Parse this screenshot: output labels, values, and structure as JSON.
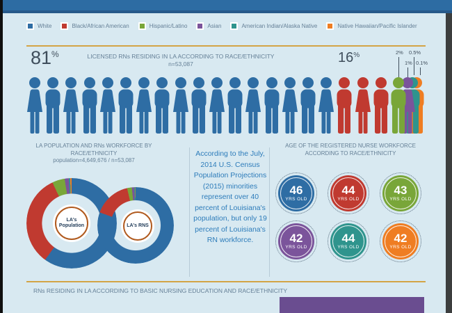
{
  "palette": {
    "white": "#2e6da4",
    "black": "#c03a30",
    "hispanic": "#79a639",
    "asian": "#7b549b",
    "amindian": "#2f948d",
    "nathaw": "#ef7d22",
    "gold": "#d3a445",
    "rust_ring": "#b05a1e",
    "callout_blue": "#2d7cba",
    "purple_block": "#6a4d90"
  },
  "legend": {
    "items": [
      {
        "label": "White",
        "color": "#2e6da4"
      },
      {
        "label": "Black/African American",
        "color": "#c03a30"
      },
      {
        "label": "Hispanic/Latino",
        "color": "#79a639"
      },
      {
        "label": "Asian",
        "color": "#7b549b"
      },
      {
        "label": "American Indian/Alaska Native",
        "color": "#2f948d"
      },
      {
        "label": "Native Hawaiian/Pacific Islander",
        "color": "#ef7d22"
      }
    ]
  },
  "header": {
    "stat_white": "81",
    "stat_black": "16",
    "pct": "%",
    "title": "LICENSED RNs RESIDING IN LA ACCORDING TO RACE/ETHNICITY",
    "subtitle": "n=53,087",
    "small_stats": [
      {
        "label": "2%"
      },
      {
        "label": "0.5%"
      },
      {
        "label": "1%"
      },
      {
        "label": "0.1%"
      }
    ]
  },
  "pictograph": {
    "groups": [
      {
        "race": "White",
        "color": "#2e6da4",
        "count": 17
      },
      {
        "race": "Black/African American",
        "color": "#c03a30",
        "count": 3
      },
      {
        "race": "Hispanic/Latino",
        "color": "#79a639",
        "count": 1
      },
      {
        "race": "Asian",
        "color": "#7b549b",
        "count": 1
      },
      {
        "race": "American Indian/Alaska Native",
        "color": "#2f948d",
        "count": 1
      },
      {
        "race": "Native Hawaiian/Pacific Islander",
        "color": "#ef7d22",
        "count": 1
      }
    ]
  },
  "venn": {
    "title": "LA POPULATION AND RNs WORKFORCE BY RACE/ETHNICITY",
    "subtitle": "population=4,649,676  /  n=53,087",
    "left_label_line1": "LA's",
    "left_label_line2": "Population",
    "right_label": "LA's RNS"
  },
  "callout": {
    "text": "According to the July, 2014 U.S. Census Population Projections (2015) minorities represent over 40 percent of Louisiana's population, but only 19 percent of Louisiana's RN workforce."
  },
  "ages": {
    "title_line1": "AGE OF THE REGISTERED NURSE WORKFORCE",
    "title_line2": "ACCORDING TO RACE/ETHNICITY",
    "circles": [
      {
        "age": "46",
        "unit": "YRS OLD",
        "color": "#2e6da4"
      },
      {
        "age": "44",
        "unit": "YRS OLD",
        "color": "#c03a30"
      },
      {
        "age": "43",
        "unit": "YRS OLD",
        "color": "#79a639"
      },
      {
        "age": "42",
        "unit": "YRS OLD",
        "color": "#7b549b"
      },
      {
        "age": "44",
        "unit": "YRS OLD",
        "color": "#2f948d"
      },
      {
        "age": "42",
        "unit": "YRS OLD",
        "color": "#ef7d22"
      }
    ]
  },
  "bottom": {
    "title": "RNs RESIDING IN LA ACCORDING TO BASIC NURSING EDUCATION AND RACE/ETHNICITY"
  },
  "chart_data": [
    {
      "type": "pictograph",
      "title": "LICENSED RNs RESIDING IN LA ACCORDING TO RACE/ETHNICITY",
      "n": 53087,
      "categories": [
        "White",
        "Black/African American",
        "Hispanic/Latino",
        "Asian",
        "American Indian/Alaska Native",
        "Native Hawaiian/Pacific Islander"
      ],
      "values": [
        81,
        16,
        2,
        1,
        0.5,
        0.1
      ],
      "unit": "%"
    },
    {
      "type": "pie",
      "title": "LA POPULATION AND RNs WORKFORCE BY RACE/ETHNICITY",
      "population": 4649676,
      "n": 53087,
      "categories": [
        "White",
        "Black/African American",
        "Hispanic/Latino",
        "Asian",
        "American Indian/Alaska Native",
        "Native Hawaiian/Pacific Islander"
      ],
      "series": [
        {
          "name": "LA's Population",
          "values": [
            60,
            33,
            4.5,
            1.5,
            0.5,
            0.5
          ]
        },
        {
          "name": "LA's RNS",
          "values": [
            81,
            16,
            2,
            1,
            0.5,
            0.1
          ]
        }
      ],
      "legend_position": "top"
    },
    {
      "type": "stat-circles",
      "title": "AGE OF THE REGISTERED NURSE WORKFORCE ACCORDING TO RACE/ETHNICITY",
      "categories": [
        "White",
        "Black/African American",
        "Hispanic/Latino",
        "Asian",
        "American Indian/Alaska Native",
        "Native Hawaiian/Pacific Islander"
      ],
      "values": [
        46,
        44,
        43,
        42,
        44,
        42
      ],
      "unit": "YRS OLD"
    }
  ]
}
